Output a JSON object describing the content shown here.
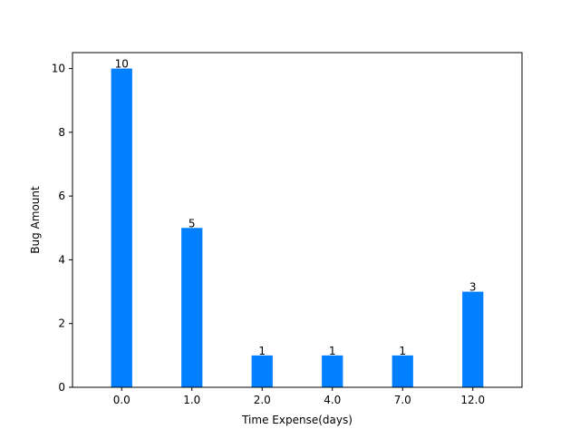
{
  "chart_data": {
    "type": "bar",
    "categories": [
      "0.0",
      "1.0",
      "2.0",
      "4.0",
      "7.0",
      "12.0"
    ],
    "values": [
      10,
      5,
      1,
      1,
      1,
      3
    ],
    "data_labels": [
      "10",
      "5",
      "1",
      "1",
      "1",
      "3"
    ],
    "title": "",
    "xlabel": "Time Expense(days)",
    "ylabel": "Bug Amount",
    "ylim": [
      0,
      10.5
    ],
    "yticks": [
      0,
      2,
      4,
      6,
      8,
      10
    ],
    "ytick_labels": [
      "0",
      "2",
      "4",
      "6",
      "8",
      "10"
    ],
    "grid": false,
    "bar_color": "#0080ff"
  }
}
